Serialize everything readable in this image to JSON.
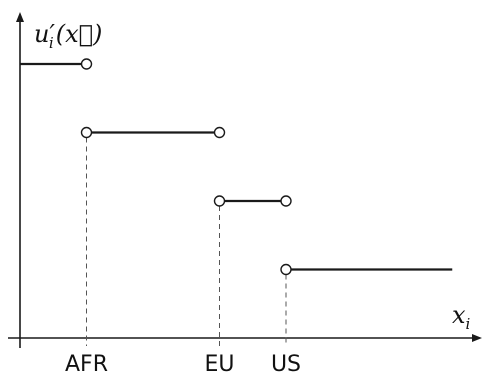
{
  "chart_data": {
    "type": "line",
    "title": "",
    "ylabel_parts": {
      "main": "u",
      "prime": "′",
      "sub": "i",
      "arg": "(x⃗)"
    },
    "xlabel_parts": {
      "main": "x",
      "sub": "i"
    },
    "categories": [
      "AFR",
      "EU",
      "US"
    ],
    "x_positions": [
      1,
      3,
      4
    ],
    "xlim": [
      0,
      6.5
    ],
    "ylim": [
      0,
      4.1
    ],
    "grid": false,
    "legend": "none",
    "steps": [
      {
        "x_start": 0,
        "x_end": 1,
        "value": 4,
        "end_marker": "open-circle"
      },
      {
        "x_start": 1,
        "x_end": 3,
        "value": 3,
        "start_marker": "open-circle",
        "end_marker": "open-circle"
      },
      {
        "x_start": 3,
        "x_end": 4,
        "value": 2,
        "start_marker": "open-circle",
        "end_marker": "open-circle"
      },
      {
        "x_start": 4,
        "x_end": 6.5,
        "value": 1,
        "start_marker": "open-circle"
      }
    ],
    "dashed_guides_at": [
      1,
      3,
      4
    ]
  }
}
